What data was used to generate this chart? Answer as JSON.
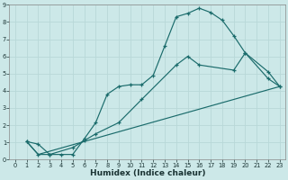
{
  "title": "",
  "xlabel": "Humidex (Indice chaleur)",
  "ylabel": "",
  "bg_color": "#cce8e8",
  "grid_color": "#b8d8d8",
  "line_color": "#1a6b6b",
  "xlim": [
    -0.5,
    23.5
  ],
  "ylim": [
    0,
    9
  ],
  "xticks": [
    0,
    1,
    2,
    3,
    4,
    5,
    6,
    7,
    8,
    9,
    10,
    11,
    12,
    13,
    14,
    15,
    16,
    17,
    18,
    19,
    20,
    21,
    22,
    23
  ],
  "yticks": [
    0,
    1,
    2,
    3,
    4,
    5,
    6,
    7,
    8,
    9
  ],
  "line1_x": [
    1,
    2,
    3,
    4,
    5,
    6,
    7,
    8,
    9,
    10,
    11,
    12,
    13,
    14,
    15,
    16,
    17,
    18,
    19,
    20,
    22,
    23
  ],
  "line1_y": [
    1.05,
    0.9,
    0.3,
    0.3,
    0.3,
    1.2,
    2.15,
    3.8,
    4.25,
    4.35,
    4.35,
    4.9,
    6.6,
    8.3,
    8.5,
    8.8,
    8.55,
    8.1,
    7.2,
    6.2,
    4.7,
    4.25
  ],
  "line2_x": [
    1,
    2,
    3,
    5,
    6,
    7,
    9,
    11,
    14,
    15,
    16,
    19,
    20,
    22,
    23
  ],
  "line2_y": [
    1.05,
    0.3,
    0.3,
    0.7,
    1.1,
    1.5,
    2.15,
    3.5,
    5.5,
    6.0,
    5.5,
    5.2,
    6.2,
    5.1,
    4.25
  ],
  "line3_x": [
    1,
    2,
    23
  ],
  "line3_y": [
    1.05,
    0.3,
    4.25
  ]
}
